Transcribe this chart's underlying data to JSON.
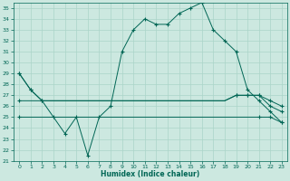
{
  "xlabel": "Humidex (Indice chaleur)",
  "bg_color": "#cce8e0",
  "grid_color": "#aad4c8",
  "line_color": "#006655",
  "xlim": [
    -0.5,
    23.5
  ],
  "ylim": [
    21,
    35.5
  ],
  "yticks": [
    21,
    22,
    23,
    24,
    25,
    26,
    27,
    28,
    29,
    30,
    31,
    32,
    33,
    34,
    35
  ],
  "xticks": [
    0,
    1,
    2,
    3,
    4,
    5,
    6,
    7,
    8,
    9,
    10,
    11,
    12,
    13,
    14,
    15,
    16,
    17,
    18,
    19,
    20,
    21,
    22,
    23
  ],
  "line_main": [
    29,
    27.5,
    26.5,
    25.0,
    23.5,
    25.0,
    21.5,
    25.0,
    26.0,
    31.0,
    33.0,
    34.0,
    33.5,
    33.5,
    34.5,
    35.0,
    35.5,
    33.0,
    32.0,
    31.0,
    27.5,
    26.5,
    25.5,
    24.5
  ],
  "line_max": [
    29,
    27.5,
    26.5,
    26.5,
    26.5,
    26.5,
    26.5,
    26.5,
    26.5,
    26.5,
    26.5,
    26.5,
    26.5,
    26.5,
    26.5,
    26.5,
    26.5,
    26.5,
    26.5,
    27.0,
    27.0,
    27.0,
    26.5,
    26.0
  ],
  "line_mid": [
    26.5,
    26.5,
    26.5,
    26.5,
    26.5,
    26.5,
    26.5,
    26.5,
    26.5,
    26.5,
    26.5,
    26.5,
    26.5,
    26.5,
    26.5,
    26.5,
    26.5,
    26.5,
    26.5,
    27.0,
    27.0,
    27.0,
    26.0,
    25.5
  ],
  "line_min": [
    25.0,
    25.0,
    25.0,
    25.0,
    25.0,
    25.0,
    25.0,
    25.0,
    25.0,
    25.0,
    25.0,
    25.0,
    25.0,
    25.0,
    25.0,
    25.0,
    25.0,
    25.0,
    25.0,
    25.0,
    25.0,
    25.0,
    25.0,
    24.5
  ],
  "markers_main": [
    0,
    1,
    2,
    3,
    4,
    5,
    6,
    7,
    8,
    9,
    10,
    11,
    12,
    13,
    14,
    15,
    16,
    17,
    18,
    19,
    20,
    21,
    22,
    23
  ],
  "markers_max": [
    0,
    1,
    2,
    19,
    20,
    21,
    22,
    23
  ],
  "markers_mid": [
    0,
    19,
    20,
    21,
    22,
    23
  ],
  "markers_min": [
    0,
    21,
    22,
    23
  ]
}
